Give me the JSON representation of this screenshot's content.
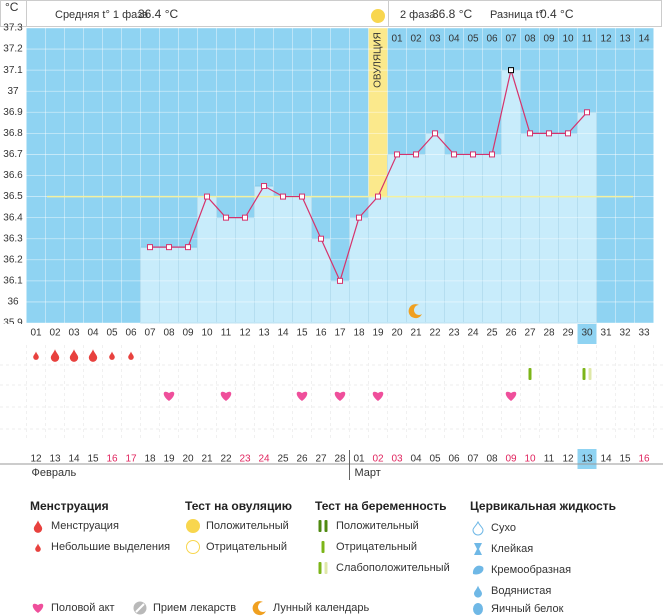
{
  "header": {
    "unit": "°C",
    "phase1_label": "Средняя t° 1 фаза",
    "phase1_value": "36.4 °C",
    "phase2_label": "2 фаза",
    "phase2_value": "36.8 °C",
    "diff_label": "Разница t°",
    "diff_value": "0.4 °C"
  },
  "chart_data": {
    "type": "bar",
    "categories": [
      "01",
      "02",
      "03",
      "04",
      "05",
      "06",
      "07",
      "08",
      "09",
      "10",
      "11",
      "12",
      "13",
      "14",
      "15",
      "16",
      "17",
      "18",
      "19",
      "20",
      "21",
      "22",
      "23",
      "24",
      "25",
      "26",
      "27",
      "28",
      "29",
      "30",
      "31",
      "32",
      "33"
    ],
    "post_ovulation_days": [
      null,
      null,
      null,
      null,
      null,
      null,
      null,
      null,
      null,
      null,
      null,
      null,
      null,
      null,
      null,
      null,
      null,
      null,
      null,
      "01",
      "02",
      "03",
      "04",
      "05",
      "06",
      "07",
      "08",
      "09",
      "10",
      "11",
      "12",
      "13",
      "14"
    ],
    "values": [
      null,
      null,
      null,
      null,
      null,
      null,
      36.26,
      36.26,
      36.26,
      36.5,
      36.4,
      36.4,
      36.55,
      36.5,
      36.5,
      36.3,
      36.1,
      36.4,
      36.5,
      36.7,
      36.7,
      36.8,
      36.7,
      36.7,
      36.7,
      37.1,
      36.8,
      36.8,
      36.8,
      36.9,
      null,
      null,
      null
    ],
    "ylim": [
      35.9,
      37.3
    ],
    "yticks": [
      35.9,
      36,
      36.1,
      36.2,
      36.3,
      36.4,
      36.5,
      36.6,
      36.7,
      36.8,
      36.9,
      37,
      37.1,
      37.2,
      37.3
    ],
    "cover_line": 36.5,
    "ovulation_day": 19,
    "ovulation_label": "ОВУЛЯЦИЯ",
    "bar_color": "#c8ecfb",
    "plot_color": "#8fd3f2",
    "line_color": "#d6336c",
    "ovulation_color": "#fbe98c",
    "highlight_day": 30,
    "dates": [
      "12",
      "13",
      "14",
      "15",
      "16",
      "17",
      "18",
      "19",
      "20",
      "21",
      "22",
      "23",
      "24",
      "25",
      "26",
      "27",
      "28",
      "01",
      "02",
      "03",
      "04",
      "05",
      "06",
      "07",
      "08",
      "09",
      "10",
      "11",
      "12",
      "13",
      "14",
      "15",
      "16"
    ],
    "weekends": [
      5,
      6,
      12,
      13,
      19,
      20,
      26,
      27,
      33
    ],
    "months": [
      {
        "label": "Февраль",
        "day": 1
      },
      {
        "label": "Март",
        "day": 18
      }
    ]
  },
  "legend": [
    {
      "title": "Менструация",
      "items": [
        {
          "label": "Менструация",
          "color": "#e8413e",
          "days": [
            2,
            3,
            4
          ]
        },
        {
          "label": "Небольшие выделения",
          "color": "#e8413e",
          "days": [
            1,
            5,
            6
          ]
        }
      ]
    },
    {
      "title": "Тест на овуляцию",
      "items": [
        {
          "label": "Положительный",
          "color": "#f8d64e",
          "days": [
            19
          ]
        },
        {
          "label": "Отрицательный",
          "color": "#f8d64e"
        }
      ]
    },
    {
      "title": "Тест на беременность",
      "items": [
        {
          "label": "Положительный",
          "color": "#7cb518"
        },
        {
          "label": "Отрицательный",
          "color": "#7cb518",
          "days": [
            27
          ]
        },
        {
          "label": "Слабоположительный",
          "color": "#7cb518",
          "days": [
            30
          ]
        }
      ]
    },
    {
      "title": "Цервикальная жидкость",
      "items": [
        {
          "label": "Сухо",
          "color": "#6fb8e6"
        },
        {
          "label": "Клейкая",
          "color": "#6fb8e6"
        },
        {
          "label": "Кремообразная",
          "color": "#6fb8e6"
        },
        {
          "label": "Водянистая",
          "color": "#6fb8e6"
        },
        {
          "label": "Яичный белок",
          "color": "#6fb8e6"
        }
      ]
    },
    {
      "items": [
        {
          "label": "Половой акт",
          "color": "#ef4f9b",
          "days": [
            8,
            11,
            15,
            17,
            19,
            26
          ]
        },
        {
          "label": "Прием лекарств",
          "color": "#b9b9b9"
        },
        {
          "label": "Лунный календарь",
          "color": "#f0a020",
          "days": [
            21
          ]
        }
      ]
    }
  ]
}
